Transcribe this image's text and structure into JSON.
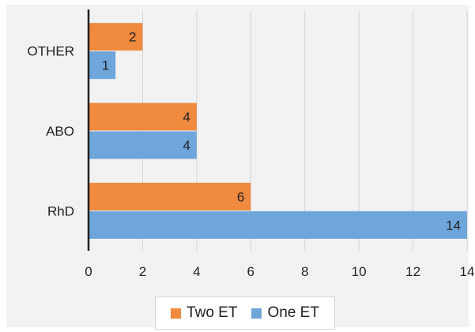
{
  "chart_data": {
    "type": "bar",
    "orientation": "horizontal",
    "categories": [
      "OTHER",
      "ABO",
      "RhD"
    ],
    "series": [
      {
        "name": "Two ET",
        "values": [
          2,
          4,
          6
        ],
        "color": "#ef8a3f"
      },
      {
        "name": "One ET",
        "values": [
          1,
          4,
          14
        ],
        "color": "#6ea5da"
      }
    ],
    "xlim": [
      0,
      14
    ],
    "x_ticks": [
      "0",
      "2",
      "4",
      "6",
      "8",
      "10",
      "12",
      "14"
    ],
    "grid": true,
    "data_labels": true,
    "legend_position": "bottom",
    "title": "",
    "xlabel": "",
    "ylabel": ""
  }
}
